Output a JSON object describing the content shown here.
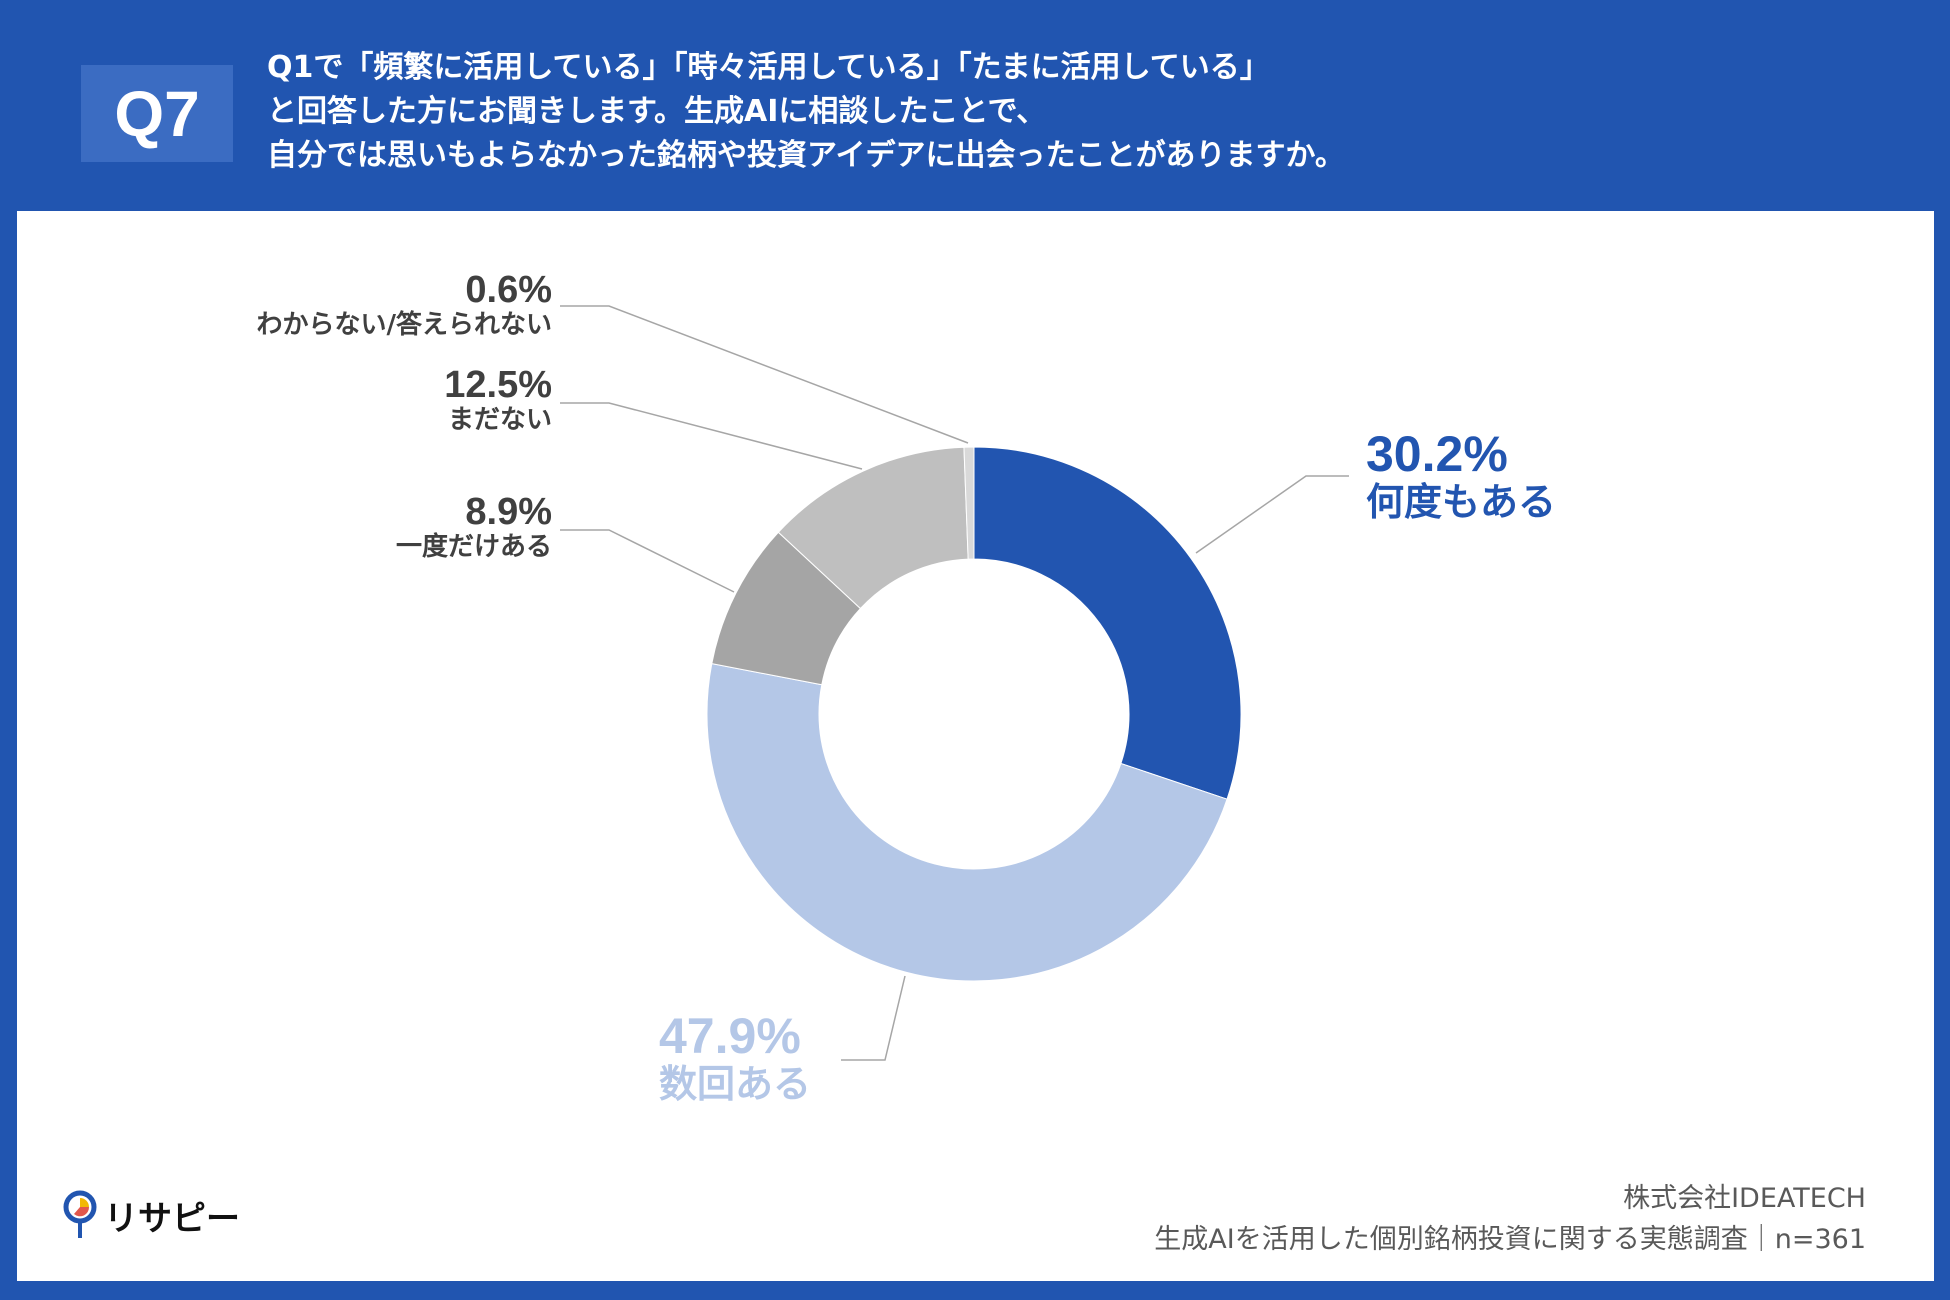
{
  "header": {
    "badge": "Q7",
    "question_lines": [
      "Q1で「頻繁に活用している」「時々活用している」「たまに活用している」",
      "と回答した方にお聞きします。生成AIに相談したことで、",
      "自分では思いもよらなかった銘柄や投資アイデアに出会ったことがありますか。"
    ]
  },
  "chart_data": {
    "type": "pie",
    "donut": true,
    "start": "top, clockwise",
    "slices": [
      {
        "label": "何度もある",
        "value": 30.2,
        "display": "30.2%",
        "color": "#2255b0"
      },
      {
        "label": "数回ある",
        "value": 47.9,
        "display": "47.9%",
        "color": "#b4c7e7"
      },
      {
        "label": "一度だけある",
        "value": 8.9,
        "display": "8.9%",
        "color": "#a5a5a5"
      },
      {
        "label": "まだない",
        "value": 12.5,
        "display": "12.5%",
        "color": "#bfbfbf"
      },
      {
        "label": "わからない/答えられない",
        "value": 0.6,
        "display": "0.6%",
        "color": "#d9d9d9"
      }
    ]
  },
  "footer": {
    "company": "株式会社IDEATECH",
    "survey": "生成AIを活用した個別銘柄投資に関する実態調査｜n=361"
  },
  "logo": {
    "text": "リサピー"
  }
}
